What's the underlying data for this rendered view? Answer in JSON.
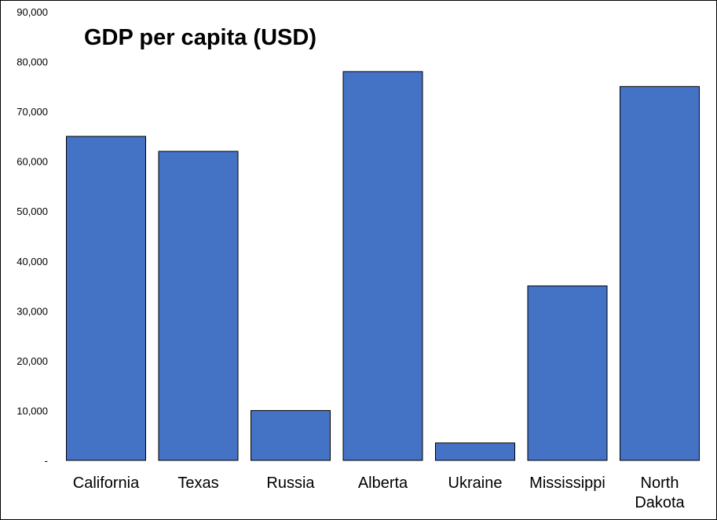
{
  "chart_data": {
    "type": "bar",
    "title": "GDP per capita (USD)",
    "categories": [
      [
        "California"
      ],
      [
        "Texas"
      ],
      [
        "Russia"
      ],
      [
        "Alberta"
      ],
      [
        "Ukraine"
      ],
      [
        "Mississippi"
      ],
      [
        "North",
        "Dakota"
      ]
    ],
    "values": [
      65000,
      62000,
      10000,
      78000,
      3500,
      35000,
      75000
    ],
    "ylim": [
      0,
      90000
    ],
    "yticks": [
      0,
      10000,
      20000,
      30000,
      40000,
      50000,
      60000,
      70000,
      80000,
      90000
    ],
    "ytick_labels": [
      "-",
      "10,000",
      "20,000",
      "30,000",
      "40,000",
      "50,000",
      "60,000",
      "70,000",
      "80,000",
      "90,000"
    ],
    "xlabel": "",
    "ylabel": "",
    "grid": false,
    "legend": "none",
    "bar_color": "#4472C4",
    "bar_edge_color": "#000000"
  }
}
